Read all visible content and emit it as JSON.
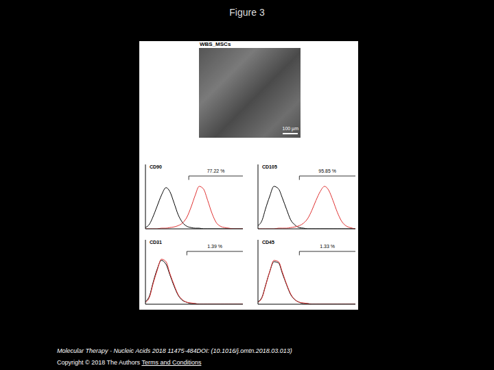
{
  "title": "Figure 3",
  "image_label": "WBS_MSCs",
  "scale_bar": "100 µm",
  "footer": [
    "Molecular Therapy - Nucleic Acids 2018 11475-484DOI: (10.1016/j.omtn.2018.03.013)",
    "Copyright © 2018 The Authors",
    "Terms and Conditions"
  ],
  "chart_data": [
    {
      "type": "line",
      "title": "CD90",
      "log": "x",
      "tick_labels": false,
      "xlim": [
        1,
        10000
      ],
      "xticks": [
        1,
        10,
        100,
        1000,
        10000
      ],
      "ylim": [
        0,
        100
      ],
      "yticks": [
        0,
        25,
        50,
        75,
        100
      ],
      "gate": [
        60,
        10000
      ],
      "annotation": "77.22 %",
      "x": [
        1,
        1.5,
        2,
        3,
        4.5,
        7,
        10,
        15,
        22,
        33,
        50,
        75,
        110,
        160,
        240,
        360,
        540,
        800,
        1200,
        1800,
        2700,
        4000,
        6000,
        10000
      ],
      "series": [
        {
          "color": "#000000",
          "values": [
            2,
            8,
            18,
            35,
            52,
            64,
            58,
            40,
            22,
            10,
            4,
            2,
            1,
            1,
            0,
            0,
            0,
            0,
            0,
            0,
            0,
            0,
            0,
            0
          ]
        },
        {
          "color": "#e03030",
          "values": [
            0,
            0,
            0,
            0,
            1,
            1,
            2,
            3,
            5,
            9,
            18,
            34,
            52,
            66,
            62,
            44,
            24,
            10,
            4,
            2,
            1,
            0,
            0,
            0
          ]
        }
      ]
    },
    {
      "type": "line",
      "title": "CD105",
      "log": "x",
      "tick_labels": false,
      "xlim": [
        1,
        10000
      ],
      "xticks": [
        1,
        10,
        100,
        1000,
        10000
      ],
      "ylim": [
        0,
        100
      ],
      "yticks": [
        0,
        25,
        50,
        75,
        100
      ],
      "gate": [
        50,
        10000
      ],
      "annotation": "95.85 %",
      "x": [
        1,
        1.5,
        2,
        3,
        4.5,
        7,
        10,
        15,
        22,
        33,
        50,
        75,
        110,
        160,
        240,
        360,
        540,
        800,
        1200,
        1800,
        2700,
        4000,
        6000,
        10000
      ],
      "series": [
        {
          "color": "#000000",
          "values": [
            5,
            14,
            30,
            50,
            66,
            62,
            48,
            30,
            14,
            6,
            2,
            1,
            0,
            0,
            0,
            0,
            0,
            0,
            0,
            0,
            0,
            0,
            0,
            0
          ]
        },
        {
          "color": "#e03030",
          "values": [
            0,
            0,
            0,
            0,
            0,
            1,
            1,
            1,
            2,
            3,
            5,
            9,
            16,
            28,
            44,
            58,
            66,
            60,
            44,
            26,
            12,
            5,
            2,
            0
          ]
        }
      ]
    },
    {
      "type": "line",
      "title": "CD31",
      "log": "x",
      "tick_labels": false,
      "xlim": [
        1,
        10000
      ],
      "xticks": [
        1,
        10,
        100,
        1000,
        10000
      ],
      "ylim": [
        0,
        100
      ],
      "yticks": [
        0,
        25,
        50,
        75,
        100
      ],
      "gate": [
        50,
        10000
      ],
      "annotation": "1.39 %",
      "x": [
        1,
        1.5,
        2,
        3,
        4.5,
        7,
        10,
        15,
        22,
        33,
        50,
        75,
        110,
        160,
        240,
        360,
        540,
        800,
        1200,
        1800,
        2700,
        4000,
        6000,
        10000
      ],
      "series": [
        {
          "color": "#000000",
          "values": [
            4,
            14,
            32,
            54,
            68,
            62,
            46,
            28,
            14,
            6,
            3,
            1,
            1,
            0,
            0,
            0,
            0,
            0,
            0,
            0,
            0,
            0,
            0,
            0
          ]
        },
        {
          "color": "#e03030",
          "values": [
            3,
            12,
            30,
            52,
            70,
            66,
            48,
            30,
            15,
            7,
            3,
            2,
            1,
            0,
            0,
            0,
            0,
            0,
            0,
            0,
            0,
            0,
            0,
            0
          ]
        }
      ]
    },
    {
      "type": "line",
      "title": "CD45",
      "log": "x",
      "tick_labels": false,
      "xlim": [
        1,
        10000
      ],
      "xticks": [
        1,
        10,
        100,
        1000,
        10000
      ],
      "ylim": [
        0,
        100
      ],
      "yticks": [
        0,
        25,
        50,
        75,
        100
      ],
      "gate": [
        50,
        10000
      ],
      "annotation": "1.33 %",
      "x": [
        1,
        1.5,
        2,
        3,
        4.5,
        7,
        10,
        15,
        22,
        33,
        50,
        75,
        110,
        160,
        240,
        360,
        540,
        800,
        1200,
        1800,
        2700,
        4000,
        6000,
        10000
      ],
      "series": [
        {
          "color": "#000000",
          "values": [
            4,
            12,
            28,
            50,
            66,
            64,
            48,
            30,
            15,
            7,
            3,
            1,
            1,
            0,
            0,
            0,
            0,
            0,
            0,
            0,
            0,
            0,
            0,
            0
          ]
        },
        {
          "color": "#e03030",
          "values": [
            3,
            11,
            27,
            50,
            68,
            66,
            50,
            31,
            16,
            7,
            3,
            2,
            1,
            0,
            0,
            0,
            0,
            0,
            0,
            0,
            0,
            0,
            0,
            0
          ]
        }
      ]
    }
  ]
}
